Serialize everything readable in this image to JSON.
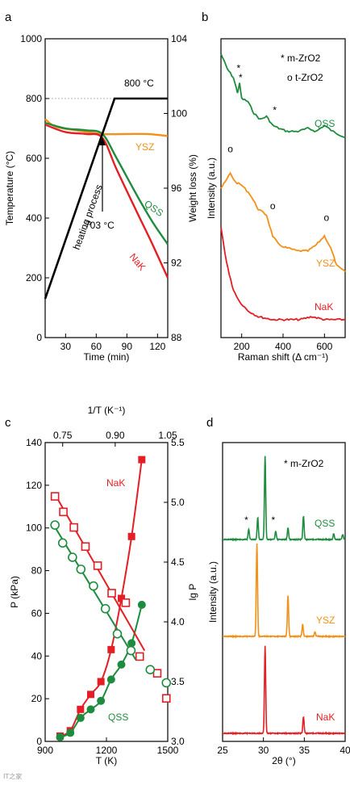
{
  "panels": {
    "a": "a",
    "b": "b",
    "c": "c",
    "d": "d"
  },
  "watermark": "IT之家",
  "chart_data": [
    {
      "panel": "a",
      "type": "line",
      "xlabel": "Time (min)",
      "ylabel_left": "Temperature (°C)",
      "ylabel_right": "Weight loss (%)",
      "xlim": [
        10,
        130
      ],
      "ylim_left": [
        0,
        1000
      ],
      "ylim_right": [
        88,
        104
      ],
      "xticks": [
        "30",
        "60",
        "90",
        "120"
      ],
      "xtick_values": [
        30,
        60,
        90,
        120
      ],
      "yticks_left": [
        "0",
        "200",
        "400",
        "600",
        "800",
        "1000"
      ],
      "ytick_values_left": [
        0,
        200,
        400,
        600,
        800,
        1000
      ],
      "yticks_right": [
        "88",
        "92",
        "96",
        "100",
        "104"
      ],
      "ytick_values_right": [
        88,
        92,
        96,
        100,
        104
      ],
      "annotations": {
        "plateau": "800 °C",
        "onset": "703 °C",
        "ramp": "heating process"
      },
      "temperature": {
        "x": [
          10,
          78,
          130
        ],
        "y": [
          130,
          800,
          800
        ],
        "color": "#000000"
      },
      "series": [
        {
          "name": "YSZ",
          "color": "#f39019",
          "x": [
            10,
            20,
            40,
            66,
            90,
            110,
            130
          ],
          "y": [
            99.7,
            99.3,
            99.1,
            98.9,
            98.9,
            98.9,
            98.8
          ]
        },
        {
          "name": "QSS",
          "color": "#1e8c3e",
          "x": [
            10,
            30,
            50,
            66,
            80,
            100,
            115,
            130
          ],
          "y": [
            99.5,
            99.2,
            99.1,
            98.9,
            97.6,
            95.6,
            94.2,
            93.0
          ]
        },
        {
          "name": "NaK",
          "color": "#e31e24",
          "x": [
            10,
            30,
            50,
            66,
            80,
            100,
            115,
            130
          ],
          "y": [
            99.4,
            99.0,
            98.9,
            98.7,
            97.0,
            94.7,
            93.0,
            91.2
          ]
        }
      ]
    },
    {
      "panel": "b",
      "type": "line",
      "xlabel": "Raman shift (Δ cm⁻¹)",
      "ylabel": "Intensity (a.u.)",
      "xlim": [
        100,
        700
      ],
      "xticks": [
        "200",
        "400",
        "600"
      ],
      "xtick_values": [
        200,
        400,
        600
      ],
      "legend": [
        "* m-ZrO2",
        "o t-ZrO2"
      ],
      "series": [
        {
          "name": "QSS",
          "color": "#1e8c3e",
          "x": [
            100,
            130,
            160,
            180,
            190,
            200,
            230,
            260,
            290,
            320,
            350,
            380,
            420,
            470,
            520,
            560,
            600,
            640,
            700
          ],
          "y": [
            0.95,
            0.9,
            0.87,
            0.82,
            0.85,
            0.8,
            0.79,
            0.75,
            0.73,
            0.74,
            0.71,
            0.7,
            0.69,
            0.69,
            0.7,
            0.69,
            0.71,
            0.69,
            0.67
          ]
        },
        {
          "name": "YSZ",
          "color": "#f39019",
          "x": [
            100,
            120,
            145,
            170,
            200,
            240,
            280,
            320,
            350,
            380,
            420,
            470,
            520,
            560,
            600,
            630,
            660,
            700
          ],
          "y": [
            0.5,
            0.52,
            0.55,
            0.52,
            0.51,
            0.48,
            0.43,
            0.41,
            0.34,
            0.31,
            0.3,
            0.29,
            0.29,
            0.31,
            0.34,
            0.3,
            0.24,
            0.22
          ]
        },
        {
          "name": "NaK",
          "color": "#e31e24",
          "x": [
            100,
            120,
            140,
            160,
            190,
            230,
            280,
            350,
            420,
            480,
            540,
            600,
            650,
            700
          ],
          "y": [
            0.37,
            0.28,
            0.21,
            0.16,
            0.12,
            0.09,
            0.07,
            0.06,
            0.06,
            0.06,
            0.07,
            0.06,
            0.06,
            0.06
          ]
        }
      ],
      "markers": [
        {
          "symbol": "*",
          "x": 185,
          "y": 0.89,
          "color": "#000000"
        },
        {
          "symbol": "*",
          "x": 195,
          "y": 0.86,
          "color": "#000000"
        },
        {
          "symbol": "*",
          "x": 360,
          "y": 0.75,
          "color": "#000000"
        },
        {
          "symbol": "o",
          "x": 145,
          "y": 0.62,
          "color": "#000000"
        },
        {
          "symbol": "o",
          "x": 350,
          "y": 0.43,
          "color": "#000000"
        },
        {
          "symbol": "o",
          "x": 610,
          "y": 0.39,
          "color": "#000000"
        }
      ]
    },
    {
      "panel": "c",
      "type": "scatter",
      "xlabel": "T (K)",
      "xlabel_top": "1/T (K⁻¹)",
      "ylabel_left": "P (kPa)",
      "ylabel_right": "lg P",
      "xlim": [
        900,
        1500
      ],
      "ylim_left": [
        0,
        140
      ],
      "ylim_right": [
        3.0,
        5.5
      ],
      "xlim_top": [
        0.7,
        1.05
      ],
      "xticks": [
        "900",
        "1200",
        "1500"
      ],
      "xtick_values": [
        900,
        1200,
        1500
      ],
      "xticks_top": [
        "0.75",
        "0.90",
        "1.05"
      ],
      "xtick_values_top": [
        0.75,
        0.9,
        1.05
      ],
      "yticks_left": [
        "0",
        "20",
        "40",
        "60",
        "80",
        "100",
        "120",
        "140"
      ],
      "ytick_values_left": [
        0,
        20,
        40,
        60,
        80,
        100,
        120,
        140
      ],
      "yticks_right": [
        "3.0",
        "3.5",
        "4.0",
        "4.5",
        "5.0",
        "5.5"
      ],
      "ytick_values_right": [
        3.0,
        3.5,
        4.0,
        4.5,
        5.0,
        5.5
      ],
      "series": [
        {
          "name": "NaK",
          "color": "#e31e24",
          "marker": "filled-square",
          "axis": "T-P",
          "x": [
            973,
            1023,
            1073,
            1123,
            1173,
            1223,
            1273,
            1323,
            1373
          ],
          "y": [
            2.5,
            5,
            15,
            22,
            28,
            43,
            67,
            96,
            132
          ]
        },
        {
          "name": "QSS",
          "color": "#1e8c3e",
          "marker": "filled-circle",
          "axis": "T-P",
          "x": [
            973,
            1023,
            1073,
            1123,
            1173,
            1223,
            1273,
            1323,
            1373
          ],
          "y": [
            2,
            4,
            11,
            15,
            19,
            29,
            36,
            46,
            64
          ]
        },
        {
          "name": "NaK lgP",
          "color": "#e31e24",
          "marker": "open-square",
          "axis": "invT-lgP",
          "x": [
            0.728,
            0.752,
            0.782,
            0.815,
            0.85,
            0.89,
            0.93,
            0.97,
            1.02,
            1.046
          ],
          "y": [
            5.05,
            4.92,
            4.79,
            4.63,
            4.47,
            4.24,
            4.16,
            3.71,
            3.57,
            3.36
          ]
        },
        {
          "name": "QSS lgP",
          "color": "#1e8c3e",
          "marker": "open-circle",
          "axis": "invT-lgP",
          "x": [
            0.728,
            0.75,
            0.778,
            0.802,
            0.838,
            0.872,
            0.906,
            0.945,
            1.0,
            1.046
          ],
          "y": [
            4.81,
            4.66,
            4.54,
            4.44,
            4.3,
            4.11,
            3.9,
            3.76,
            3.6,
            3.49
          ]
        }
      ]
    },
    {
      "panel": "d",
      "type": "line",
      "xlabel": "2θ (°)",
      "ylabel": "Intensity (a.u.)",
      "xlim": [
        25,
        40
      ],
      "xticks": [
        "25",
        "30",
        "35",
        "40"
      ],
      "xtick_values": [
        25,
        30,
        35,
        40
      ],
      "legend": [
        "* m-ZrO2"
      ],
      "series": [
        {
          "name": "QSS",
          "color": "#1e8c3e",
          "peaks": [
            [
              28.2,
              0.12
            ],
            [
              29.3,
              0.26
            ],
            [
              30.2,
              0.98
            ],
            [
              31.5,
              0.1
            ],
            [
              33.0,
              0.14
            ],
            [
              34.9,
              0.28
            ],
            [
              38.6,
              0.07
            ],
            [
              39.7,
              0.06
            ]
          ],
          "baseline": 0
        },
        {
          "name": "YSZ",
          "color": "#f39019",
          "peaks": [
            [
              29.2,
              1.0
            ],
            [
              33.0,
              0.44
            ],
            [
              34.8,
              0.13
            ],
            [
              36.3,
              0.05
            ]
          ],
          "baseline": 0
        },
        {
          "name": "NaK",
          "color": "#e31e24",
          "peaks": [
            [
              30.2,
              0.98
            ],
            [
              34.9,
              0.19
            ]
          ],
          "baseline": 0
        }
      ],
      "markers": [
        {
          "symbol": "*",
          "x": 28.2,
          "series": "QSS"
        },
        {
          "symbol": "*",
          "x": 31.5,
          "series": "QSS"
        }
      ]
    }
  ]
}
